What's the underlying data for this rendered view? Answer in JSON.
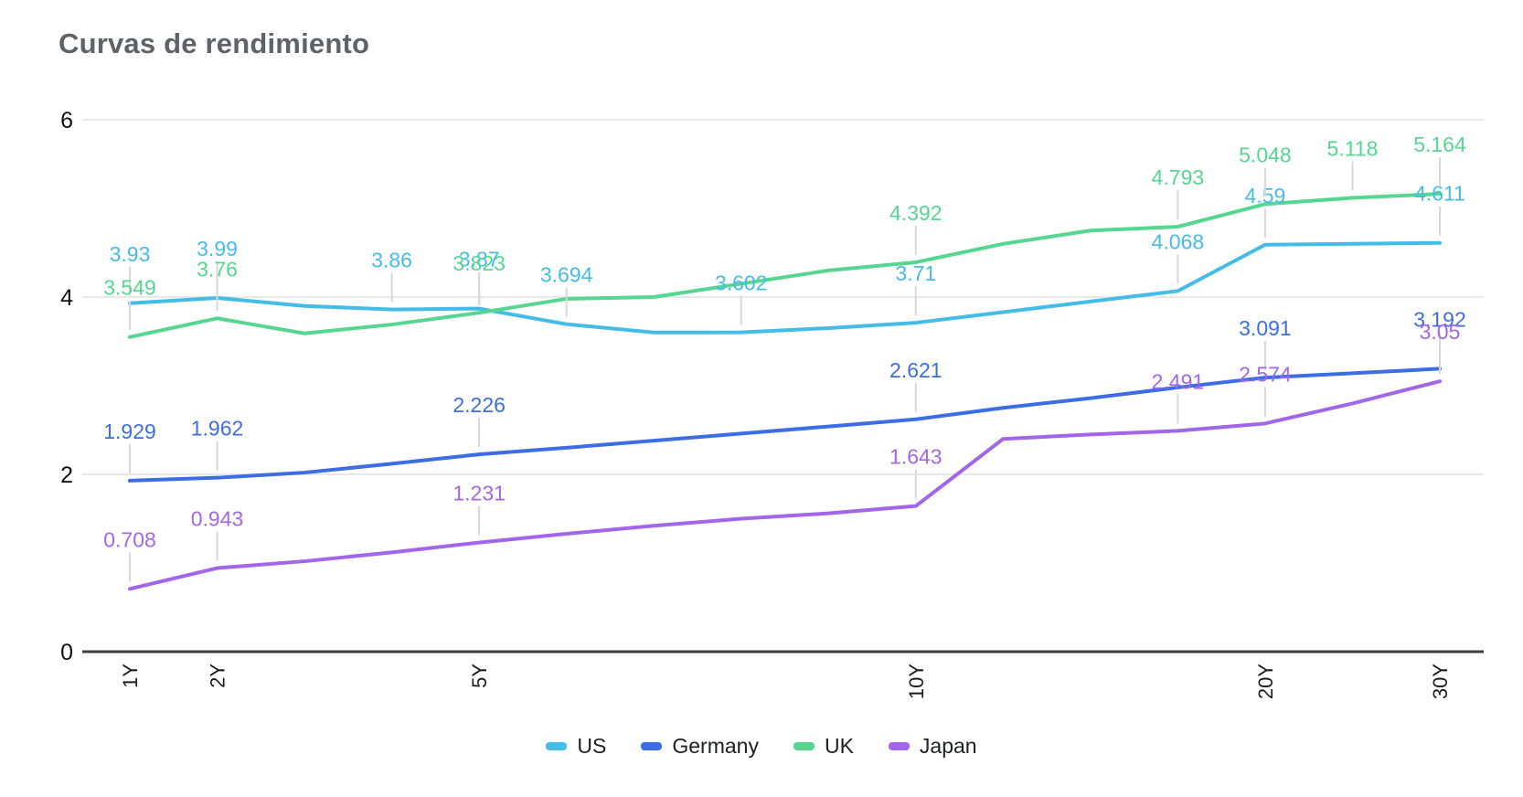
{
  "chart_data": {
    "type": "line",
    "title": "Curvas de rendimiento",
    "categories": [
      "1Y",
      "2Y",
      "",
      "",
      "5Y",
      "",
      "",
      "",
      "",
      "10Y",
      "",
      "",
      "",
      "20Y",
      "",
      "30Y"
    ],
    "x_axis_visible_labels": [
      "1Y",
      "2Y",
      "5Y",
      "10Y",
      "20Y",
      "30Y"
    ],
    "y_axis": {
      "ticks": [
        0,
        2,
        4,
        6
      ],
      "min": 0,
      "max": 6
    },
    "grid": true,
    "legend_position": "bottom",
    "axis_color": "#3d3d3d",
    "grid_color": "#E8E8E8",
    "leader_color": "#D8D8D8",
    "series": [
      {
        "name": "US",
        "color": "#45BCE8",
        "values": [
          3.93,
          3.99,
          3.9,
          3.86,
          3.87,
          3.694,
          3.6,
          3.602,
          3.65,
          3.71,
          3.83,
          3.95,
          4.068,
          4.59,
          4.6,
          4.611
        ],
        "point_labels": {
          "0": "3.93",
          "1": "3.99",
          "3": "3.86",
          "4": "3.87",
          "5": "3.694",
          "7": "3.602",
          "9": "3.71",
          "12": "4.068",
          "13": "4.59",
          "15": "4.611"
        }
      },
      {
        "name": "Germany",
        "color": "#3D6DE3",
        "values": [
          1.929,
          1.962,
          2.02,
          2.12,
          2.226,
          2.3,
          2.38,
          2.46,
          2.54,
          2.621,
          2.75,
          2.86,
          2.98,
          3.091,
          3.14,
          3.192
        ],
        "point_labels": {
          "0": "1.929",
          "1": "1.962",
          "4": "2.226",
          "9": "2.621",
          "13": "3.091",
          "15": "3.192"
        }
      },
      {
        "name": "UK",
        "color": "#56D690",
        "values": [
          3.549,
          3.76,
          3.59,
          3.69,
          3.823,
          3.98,
          4.0,
          4.15,
          4.3,
          4.392,
          4.6,
          4.75,
          4.793,
          5.048,
          5.118,
          5.164
        ],
        "point_labels": {
          "0": "3.549",
          "1": "3.76",
          "4": "3.823",
          "9": "4.392",
          "12": "4.793",
          "13": "5.048",
          "14": "5.118",
          "15": "5.164"
        }
      },
      {
        "name": "Japan",
        "color": "#A266E8",
        "values": [
          0.708,
          0.943,
          1.02,
          1.12,
          1.231,
          1.33,
          1.42,
          1.5,
          1.56,
          1.643,
          2.4,
          2.45,
          2.491,
          2.574,
          2.8,
          3.05
        ],
        "point_labels": {
          "0": "0.708",
          "1": "0.943",
          "4": "1.231",
          "9": "1.643",
          "12": "2.491",
          "13": "2.574",
          "15": "3.05"
        }
      }
    ]
  }
}
